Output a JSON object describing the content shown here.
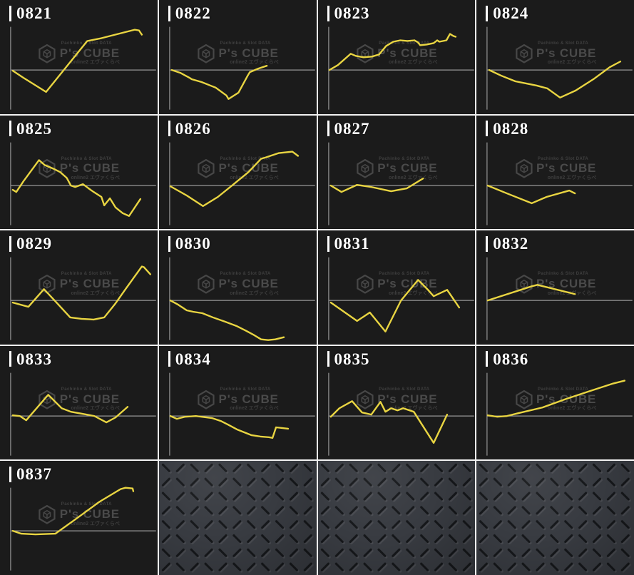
{
  "colors": {
    "page_bg": "#1a1a1a",
    "grid_line": "#f2f2f2",
    "cell_bg": "#1b1b1b",
    "chart_line": "#e9d542",
    "axis_line": "#979797",
    "label_text": "#ffffff",
    "label_bar": "#ffffff",
    "watermark_text": "#4a4a4a",
    "texture_base": "#383b41",
    "texture_groove": "#15171a"
  },
  "watermark": {
    "top_text": "Pachinko & Slot DATA",
    "brand": "P's CUBE",
    "bottom_text": "online2 エヴァくらべ"
  },
  "grid": {
    "columns": 4,
    "rows": 5,
    "chart_cell_count": 17,
    "texture_cell_count": 3
  },
  "chart_data": {
    "type": "line",
    "title": "",
    "xlabel": "",
    "ylabel": "",
    "axes_labeled": false,
    "legend": "none",
    "grid_on": false,
    "coordinate_space": "cell pixels, 222 wide x 161 high, y increases downward; zero baseline at y=99, y-axis at x=15; yellow line is payout slump graph per machine",
    "baseline_y": 99,
    "axis_x": 15,
    "series": [
      {
        "name": "0821",
        "points": [
          [
            18,
            100
          ],
          [
            33,
            110
          ],
          [
            65,
            130
          ],
          [
            123,
            58
          ],
          [
            143,
            54
          ],
          [
            190,
            42
          ],
          [
            196,
            43
          ],
          [
            200,
            49
          ]
        ]
      },
      {
        "name": "0822",
        "points": [
          [
            18,
            99
          ],
          [
            30,
            103
          ],
          [
            43,
            110
          ],
          [
            46,
            112
          ],
          [
            60,
            116
          ],
          [
            75,
            122
          ],
          [
            80,
            124
          ],
          [
            95,
            135
          ],
          [
            98,
            140
          ],
          [
            112,
            131
          ],
          [
            125,
            107
          ],
          [
            128,
            102
          ],
          [
            140,
            97
          ],
          [
            152,
            93
          ]
        ]
      },
      {
        "name": "0823",
        "points": [
          [
            16,
            99
          ],
          [
            28,
            92
          ],
          [
            46,
            76
          ],
          [
            53,
            79
          ],
          [
            64,
            81
          ],
          [
            76,
            80
          ],
          [
            86,
            77
          ],
          [
            96,
            65
          ],
          [
            106,
            59
          ],
          [
            116,
            57
          ],
          [
            126,
            58
          ],
          [
            136,
            57
          ],
          [
            141,
            60
          ],
          [
            144,
            64
          ],
          [
            153,
            63
          ],
          [
            163,
            61
          ],
          [
            168,
            57
          ],
          [
            171,
            59
          ],
          [
            181,
            57
          ],
          [
            186,
            48
          ],
          [
            191,
            51
          ],
          [
            194,
            52
          ]
        ]
      },
      {
        "name": "0824",
        "points": [
          [
            18,
            99
          ],
          [
            35,
            107
          ],
          [
            55,
            115
          ],
          [
            70,
            118
          ],
          [
            85,
            121
          ],
          [
            100,
            125
          ],
          [
            118,
            138
          ],
          [
            140,
            128
          ],
          [
            165,
            112
          ],
          [
            188,
            95
          ],
          [
            203,
            87
          ]
        ]
      },
      {
        "name": "0825",
        "points": [
          [
            18,
            105
          ],
          [
            23,
            108
          ],
          [
            33,
            93
          ],
          [
            55,
            63
          ],
          [
            63,
            70
          ],
          [
            75,
            75
          ],
          [
            85,
            80
          ],
          [
            94,
            88
          ],
          [
            100,
            99
          ],
          [
            106,
            101
          ],
          [
            117,
            97
          ],
          [
            125,
            103
          ],
          [
            132,
            108
          ],
          [
            143,
            115
          ],
          [
            147,
            127
          ],
          [
            155,
            117
          ],
          [
            163,
            130
          ],
          [
            173,
            138
          ],
          [
            182,
            142
          ],
          [
            198,
            118
          ]
        ]
      },
      {
        "name": "0826",
        "points": [
          [
            16,
            100
          ],
          [
            39,
            113
          ],
          [
            62,
            128
          ],
          [
            83,
            115
          ],
          [
            104,
            98
          ],
          [
            126,
            80
          ],
          [
            144,
            61
          ],
          [
            151,
            59
          ],
          [
            169,
            53
          ],
          [
            188,
            51
          ],
          [
            196,
            57
          ]
        ]
      },
      {
        "name": "0827",
        "points": [
          [
            18,
            99
          ],
          [
            33,
            108
          ],
          [
            55,
            98
          ],
          [
            75,
            101
          ],
          [
            103,
            107
          ],
          [
            125,
            103
          ],
          [
            148,
            89
          ]
        ]
      },
      {
        "name": "0828",
        "points": [
          [
            16,
            99
          ],
          [
            43,
            110
          ],
          [
            78,
            124
          ],
          [
            99,
            115
          ],
          [
            131,
            106
          ],
          [
            139,
            110
          ]
        ]
      },
      {
        "name": "0829",
        "points": [
          [
            18,
            102
          ],
          [
            40,
            108
          ],
          [
            62,
            83
          ],
          [
            77,
            99
          ],
          [
            99,
            123
          ],
          [
            115,
            125
          ],
          [
            132,
            126
          ],
          [
            147,
            123
          ],
          [
            163,
            103
          ],
          [
            177,
            83
          ],
          [
            200,
            51
          ],
          [
            203,
            52
          ],
          [
            212,
            62
          ]
        ]
      },
      {
        "name": "0830",
        "points": [
          [
            16,
            99
          ],
          [
            27,
            105
          ],
          [
            39,
            113
          ],
          [
            48,
            115
          ],
          [
            61,
            117
          ],
          [
            76,
            123
          ],
          [
            93,
            129
          ],
          [
            109,
            135
          ],
          [
            123,
            142
          ],
          [
            134,
            148
          ],
          [
            144,
            154
          ],
          [
            154,
            155
          ],
          [
            164,
            154
          ],
          [
            176,
            151
          ]
        ]
      },
      {
        "name": "0831",
        "points": [
          [
            18,
            102
          ],
          [
            55,
            128
          ],
          [
            73,
            116
          ],
          [
            95,
            143
          ],
          [
            117,
            99
          ],
          [
            141,
            70
          ],
          [
            155,
            84
          ],
          [
            163,
            93
          ],
          [
            182,
            84
          ],
          [
            199,
            109
          ]
        ]
      },
      {
        "name": "0832",
        "points": [
          [
            16,
            99
          ],
          [
            78,
            79
          ],
          [
            86,
            77
          ],
          [
            139,
            90
          ]
        ]
      },
      {
        "name": "0833",
        "points": [
          [
            18,
            98
          ],
          [
            28,
            99
          ],
          [
            37,
            105
          ],
          [
            68,
            69
          ],
          [
            87,
            88
          ],
          [
            100,
            93
          ],
          [
            117,
            96
          ],
          [
            133,
            99
          ],
          [
            150,
            108
          ],
          [
            163,
            101
          ],
          [
            180,
            86
          ]
        ]
      },
      {
        "name": "0834",
        "points": [
          [
            16,
            99
          ],
          [
            25,
            103
          ],
          [
            37,
            100
          ],
          [
            52,
            99
          ],
          [
            75,
            102
          ],
          [
            87,
            106
          ],
          [
            97,
            111
          ],
          [
            110,
            118
          ],
          [
            130,
            126
          ],
          [
            143,
            128
          ],
          [
            155,
            129
          ],
          [
            160,
            130
          ],
          [
            165,
            115
          ],
          [
            182,
            117
          ]
        ]
      },
      {
        "name": "0835",
        "points": [
          [
            18,
            100
          ],
          [
            30,
            88
          ],
          [
            48,
            78
          ],
          [
            62,
            94
          ],
          [
            75,
            97
          ],
          [
            88,
            79
          ],
          [
            95,
            93
          ],
          [
            103,
            88
          ],
          [
            112,
            91
          ],
          [
            120,
            88
          ],
          [
            135,
            93
          ],
          [
            163,
            137
          ],
          [
            182,
            97
          ]
        ]
      },
      {
        "name": "0836",
        "points": [
          [
            16,
            98
          ],
          [
            29,
            100
          ],
          [
            43,
            99
          ],
          [
            59,
            95
          ],
          [
            93,
            87
          ],
          [
            126,
            75
          ],
          [
            159,
            64
          ],
          [
            193,
            53
          ],
          [
            209,
            49
          ]
        ]
      },
      {
        "name": "0837",
        "points": [
          [
            18,
            99
          ],
          [
            30,
            103
          ],
          [
            50,
            104
          ],
          [
            78,
            103
          ],
          [
            110,
            80
          ],
          [
            140,
            58
          ],
          [
            170,
            40
          ],
          [
            177,
            38
          ],
          [
            187,
            39
          ],
          [
            188,
            43
          ]
        ]
      }
    ]
  }
}
